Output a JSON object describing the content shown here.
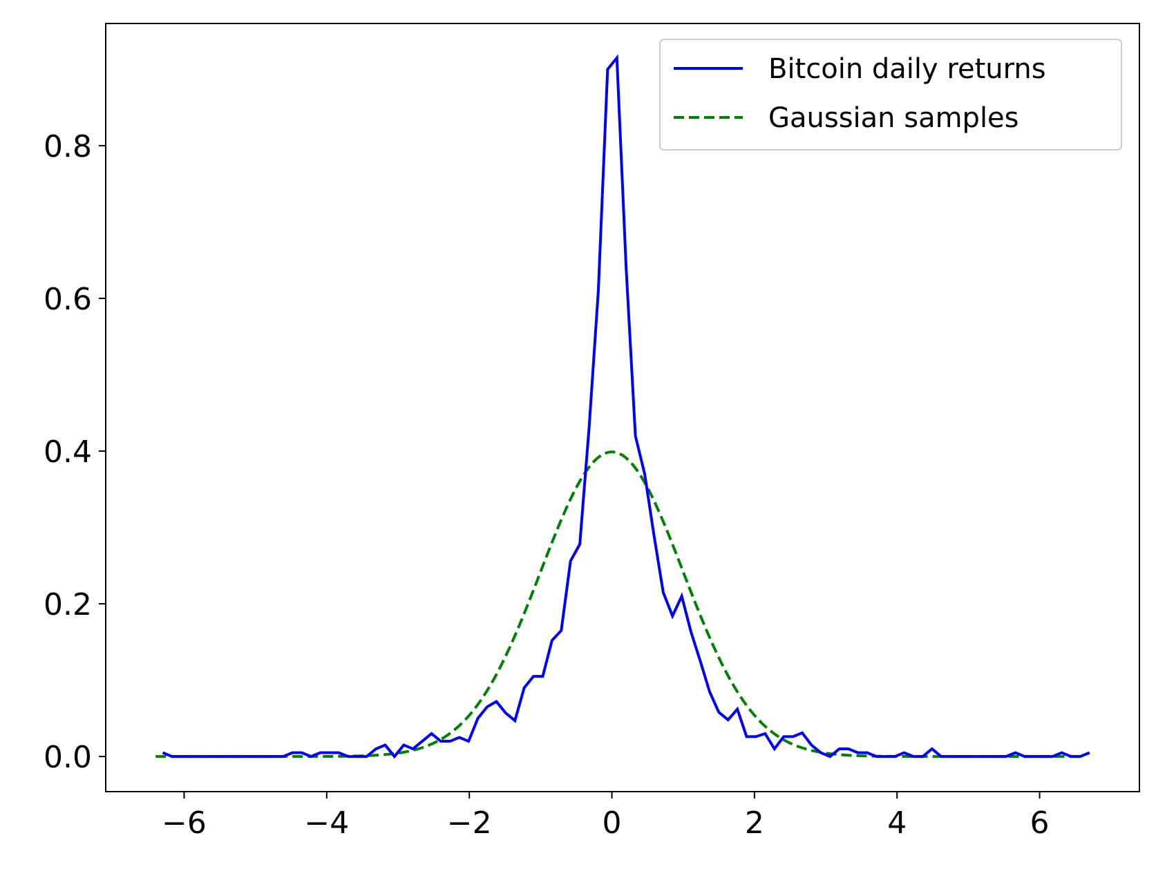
{
  "chart_data": {
    "type": "line",
    "title": "",
    "xlabel": "",
    "ylabel": "",
    "xlim": [
      -7.1,
      7.4
    ],
    "ylim": [
      -0.046,
      0.96
    ],
    "xticks": [
      -6,
      -4,
      -2,
      0,
      2,
      4,
      6
    ],
    "xtick_labels": [
      "−6",
      "−4",
      "−2",
      "0",
      "2",
      "4",
      "6"
    ],
    "yticks": [
      0.0,
      0.2,
      0.4,
      0.6,
      0.8
    ],
    "ytick_labels": [
      "0.0",
      "0.2",
      "0.4",
      "0.6",
      "0.8"
    ],
    "grid": false,
    "legend_position": "top-right",
    "series": [
      {
        "name": "Bitcoin daily returns",
        "style": "solid",
        "color": "#0000ff",
        "x": [
          -6.3,
          -6.17,
          -6.04,
          -5.91,
          -5.78,
          -5.65,
          -5.52,
          -5.39,
          -5.26,
          -5.13,
          -5.0,
          -4.87,
          -4.74,
          -4.61,
          -4.48,
          -4.35,
          -4.22,
          -4.09,
          -3.96,
          -3.83,
          -3.7,
          -3.57,
          -3.44,
          -3.31,
          -3.18,
          -3.05,
          -2.92,
          -2.79,
          -2.66,
          -2.53,
          -2.4,
          -2.27,
          -2.14,
          -2.01,
          -1.88,
          -1.75,
          -1.62,
          -1.49,
          -1.36,
          -1.23,
          -1.1,
          -0.97,
          -0.84,
          -0.71,
          -0.58,
          -0.45,
          -0.32,
          -0.19,
          -0.06,
          0.07,
          0.2,
          0.33,
          0.46,
          0.59,
          0.72,
          0.85,
          0.98,
          1.11,
          1.24,
          1.37,
          1.5,
          1.63,
          1.76,
          1.89,
          2.02,
          2.15,
          2.28,
          2.41,
          2.54,
          2.67,
          2.8,
          2.93,
          3.06,
          3.19,
          3.32,
          3.45,
          3.58,
          3.71,
          3.84,
          3.97,
          4.1,
          4.23,
          4.36,
          4.49,
          4.62,
          4.75,
          4.88,
          5.01,
          5.14,
          5.27,
          5.4,
          5.53,
          5.66,
          5.79,
          5.92,
          6.05,
          6.18,
          6.31,
          6.44,
          6.57,
          6.7
        ],
        "y": [
          0.005,
          0.0,
          0.0,
          0.0,
          0.0,
          0.0,
          0.0,
          0.0,
          0.0,
          0.0,
          0.0,
          0.0,
          0.0,
          0.0,
          0.005,
          0.005,
          0.0,
          0.005,
          0.005,
          0.005,
          0.0,
          0.0,
          0.0,
          0.01,
          0.015,
          0.0,
          0.015,
          0.01,
          0.02,
          0.03,
          0.02,
          0.02,
          0.025,
          0.02,
          0.05,
          0.065,
          0.072,
          0.057,
          0.047,
          0.09,
          0.105,
          0.105,
          0.152,
          0.165,
          0.256,
          0.278,
          0.43,
          0.61,
          0.9,
          0.915,
          0.64,
          0.42,
          0.37,
          0.29,
          0.215,
          0.184,
          0.21,
          0.163,
          0.125,
          0.085,
          0.058,
          0.048,
          0.062,
          0.026,
          0.026,
          0.03,
          0.01,
          0.026,
          0.026,
          0.031,
          0.015,
          0.005,
          0.0,
          0.01,
          0.01,
          0.005,
          0.005,
          0.0,
          0.0,
          0.0,
          0.005,
          0.0,
          0.0,
          0.01,
          0.0,
          0.0,
          0.0,
          0.0,
          0.0,
          0.0,
          0.0,
          0.0,
          0.005,
          0.0,
          0.0,
          0.0,
          0.0,
          0.005,
          0.0,
          0.0,
          0.005
        ]
      },
      {
        "name": "Gaussian samples",
        "style": "dashed",
        "color": "#008000",
        "x_range": [
          -6.4,
          6.6
        ],
        "distribution": "standard normal density"
      }
    ]
  }
}
